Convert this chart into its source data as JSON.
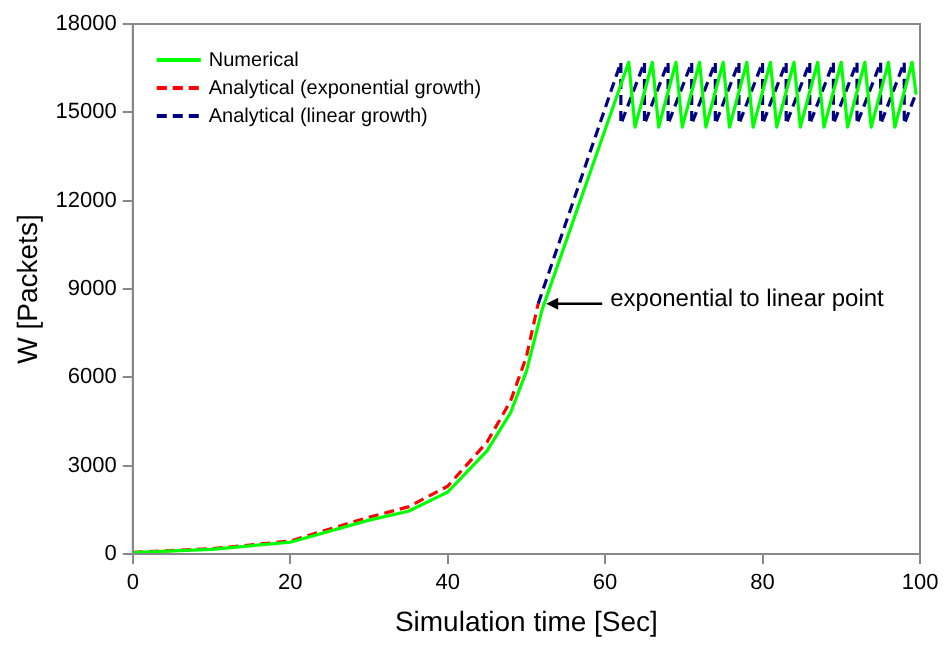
{
  "chart_data": {
    "type": "line",
    "xlabel": "Simulation time [Sec]",
    "ylabel": "W [Packets]",
    "xlim": [
      0,
      100
    ],
    "xticks": [
      0,
      20,
      40,
      60,
      80,
      100
    ],
    "ylim": [
      0,
      18000
    ],
    "yticks": [
      0,
      3000,
      6000,
      9000,
      12000,
      15000,
      18000
    ],
    "grid": false,
    "legend": "top left",
    "marker": "none",
    "series": [
      {
        "name": "Numerical",
        "color": "#00ff00",
        "line_style": "solid",
        "x": [
          0,
          10,
          20,
          30,
          35,
          40,
          45,
          48,
          50,
          52,
          63,
          63.8,
          66,
          66.8,
          69,
          69.8,
          72,
          72.8,
          75,
          75.8,
          78,
          78.8,
          81,
          81.8,
          84,
          84.8,
          87,
          87.8,
          90,
          90.8,
          93,
          93.8,
          96,
          96.8,
          99,
          99.5
        ],
        "values": [
          50,
          160,
          400,
          1150,
          1450,
          2100,
          3500,
          4800,
          6200,
          8300,
          16700,
          14500,
          16700,
          14500,
          16700,
          14500,
          16700,
          14500,
          16700,
          14500,
          16700,
          14500,
          16700,
          14500,
          16700,
          14500,
          16700,
          14500,
          16700,
          14500,
          16700,
          14500,
          16700,
          14500,
          16700,
          15600
        ]
      },
      {
        "name": "Analytical (exponential growth)",
        "color": "#ff0000",
        "line_style": "dashed",
        "x": [
          0,
          10,
          20,
          30,
          35,
          40,
          45,
          48,
          50,
          51.5
        ],
        "values": [
          60,
          180,
          440,
          1250,
          1600,
          2300,
          3800,
          5200,
          6700,
          8500
        ]
      },
      {
        "name": "Analytical (linear growth)",
        "color": "#000080",
        "line_style": "dashed",
        "x": [
          51.5,
          62,
          62,
          65,
          65,
          68,
          68,
          71,
          71,
          74,
          74,
          77,
          77,
          80,
          80,
          83,
          83,
          86,
          86,
          89,
          89,
          92,
          92,
          95,
          95,
          98,
          98,
          99.5
        ],
        "values": [
          8500,
          16700,
          14600,
          16700,
          14600,
          16700,
          14600,
          16700,
          14600,
          16700,
          14600,
          16700,
          14600,
          16700,
          14600,
          16700,
          14600,
          16700,
          14600,
          16700,
          14600,
          16700,
          14600,
          16700,
          14600,
          16700,
          14600,
          15650
        ]
      }
    ],
    "annotations": [
      {
        "text": "exponential to linear point",
        "x": 51.5,
        "y": 8500
      }
    ]
  }
}
